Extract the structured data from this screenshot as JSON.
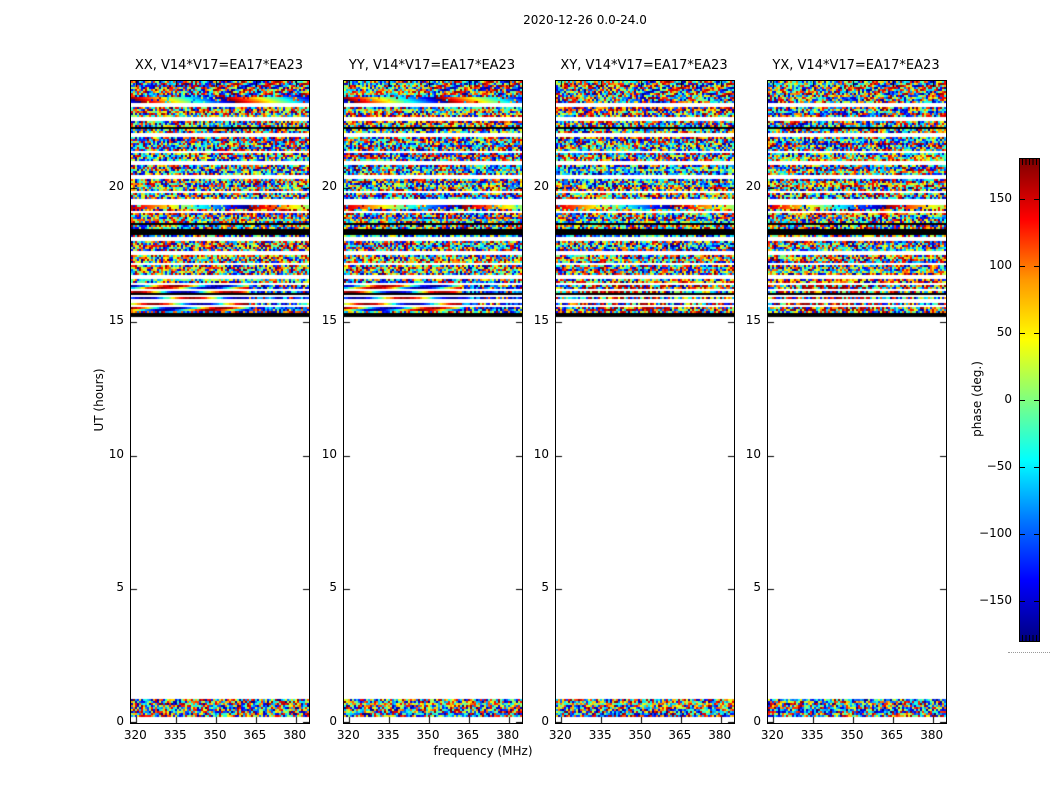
{
  "chart_data": {
    "type": "heatmap",
    "title": "2020-12-26 0.0-24.0",
    "xlabel": "frequency (MHz)",
    "ylabel": "UT (hours)",
    "colorbar_label": "phase (deg.)",
    "colormap": "jet",
    "clim": [
      -180,
      180
    ],
    "colorbar_ticks": [
      150,
      100,
      50,
      0,
      -50,
      -100,
      -150
    ],
    "xlim": [
      318,
      385
    ],
    "ylim": [
      0,
      24
    ],
    "xticks": [
      320,
      335,
      350,
      365,
      380
    ],
    "yticks": [
      0,
      5,
      10,
      15,
      20
    ],
    "grid": false,
    "legend_position": "right-colorbar",
    "panels": [
      {
        "pol": "XX",
        "title": "XX, V14*V17=EA17*EA23",
        "fringes": true
      },
      {
        "pol": "YY",
        "title": "YY, V14*V17=EA17*EA23",
        "fringes": true
      },
      {
        "pol": "XY",
        "title": "XY, V14*V17=EA17*EA23",
        "fringes": false
      },
      {
        "pol": "YX",
        "title": "YX, V14*V17=EA17*EA23",
        "fringes": false
      }
    ],
    "features": {
      "top_noise": [
        15.3,
        24.0
      ],
      "bottom_noise": [
        0.19,
        0.9
      ],
      "rainbow_band": [
        23.17,
        23.42
      ],
      "rainbow_line": [
        19.24,
        19.36
      ],
      "fringe_band": [
        15.38,
        16.44
      ],
      "fringe_noise_x_frac": 0.66,
      "wave_region": {
        "t": [
          23.5,
          23.97
        ],
        "x_start_frac": 0.45
      },
      "white_lines": [
        23.1,
        22.58,
        21.97,
        21.35,
        20.93,
        19.85,
        19.1,
        18.1,
        17.57,
        17.16,
        16.67
      ],
      "white_bands": [
        [
          20.3,
          20.47
        ],
        [
          19.4,
          19.6
        ]
      ],
      "fringe_white_lines": [
        16.4,
        16.18,
        15.98,
        15.78,
        15.58
      ],
      "black_lines": [
        22.24,
        18.65,
        16.04
      ],
      "black_bands": [
        [
          18.28,
          18.43
        ],
        [
          15.2,
          15.35
        ]
      ]
    }
  }
}
